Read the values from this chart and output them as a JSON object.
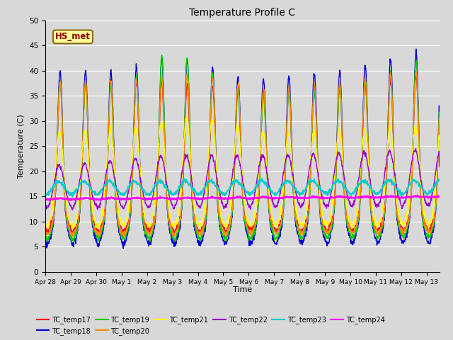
{
  "title": "Temperature Profile C",
  "xlabel": "Time",
  "ylabel": "Temperature (C)",
  "ylim": [
    0,
    50
  ],
  "annotation_text": "HS_met",
  "annotation_color": "#8B0000",
  "annotation_bg": "#FFFF99",
  "annotation_border": "#8B6914",
  "bg_color": "#D8D8D8",
  "series": [
    {
      "name": "TC_temp17",
      "color": "#FF0000"
    },
    {
      "name": "TC_temp18",
      "color": "#0000CC"
    },
    {
      "name": "TC_temp19",
      "color": "#00CC00"
    },
    {
      "name": "TC_temp20",
      "color": "#FF8C00"
    },
    {
      "name": "TC_temp21",
      "color": "#FFFF00"
    },
    {
      "name": "TC_temp22",
      "color": "#9900CC"
    },
    {
      "name": "TC_temp23",
      "color": "#00CCCC"
    },
    {
      "name": "TC_temp24",
      "color": "#FF00FF"
    }
  ],
  "x_tick_labels": [
    "Apr 28",
    "Apr 29",
    "Apr 30",
    "May 1",
    "May 2",
    "May 3",
    "May 4",
    "May 5",
    "May 6",
    "May 7",
    "May 8",
    "May 9",
    "May 10",
    "May 11",
    "May 12",
    "May 13"
  ],
  "num_days": 15.5,
  "points_per_day": 96
}
